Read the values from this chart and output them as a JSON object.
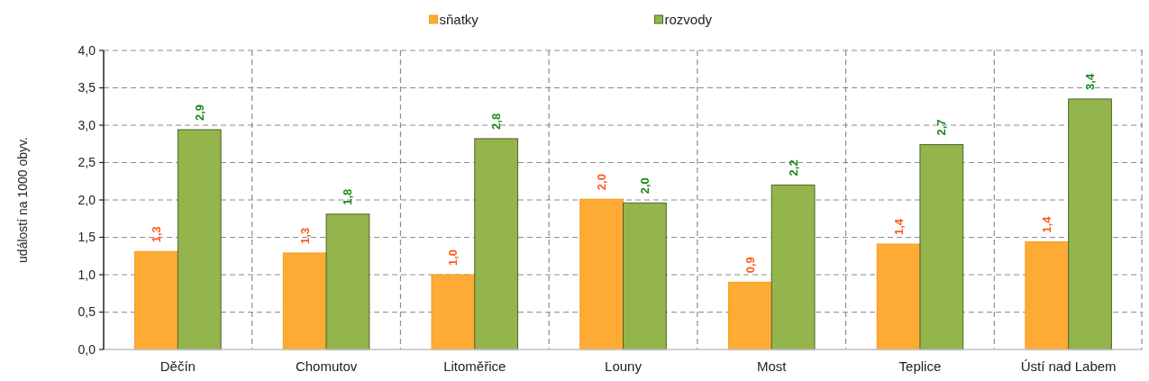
{
  "chart_data": {
    "type": "bar",
    "categories": [
      "Děčín",
      "Chomutov",
      "Litoměřice",
      "Louny",
      "Most",
      "Teplice",
      "Ústí nad Labem"
    ],
    "series": [
      {
        "name": "sňatky",
        "color": "#fdab34",
        "values": [
          1.31,
          1.29,
          1.0,
          2.01,
          0.9,
          1.41,
          1.44
        ],
        "value_labels": [
          "1,3",
          "1,3",
          "1,0",
          "2,0",
          "0,9",
          "1,4",
          "1,4"
        ]
      },
      {
        "name": "rozvody",
        "color": "#93b54c",
        "values": [
          2.94,
          1.81,
          2.82,
          1.96,
          2.2,
          2.74,
          3.35
        ],
        "value_labels": [
          "2,9",
          "1,8",
          "2,8",
          "2,0",
          "2,2",
          "2,7",
          "3,4"
        ]
      }
    ],
    "ylabel": "událostí na 1000 obyv.",
    "ylim": [
      0,
      4
    ],
    "yticks": [
      {
        "value": 0,
        "label": "0,0"
      },
      {
        "value": 0.5,
        "label": "0,5"
      },
      {
        "value": 1,
        "label": "1,0"
      },
      {
        "value": 1.5,
        "label": "1,5"
      },
      {
        "value": 2,
        "label": "2,0"
      },
      {
        "value": 2.5,
        "label": "2,5"
      },
      {
        "value": 3,
        "label": "3,0"
      },
      {
        "value": 3.5,
        "label": "3,5"
      },
      {
        "value": 4,
        "label": "4,0"
      }
    ],
    "grid": true,
    "legend": "top"
  }
}
